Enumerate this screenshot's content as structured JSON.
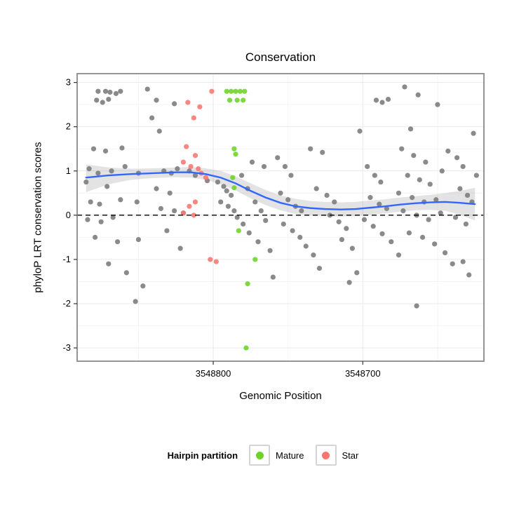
{
  "title": "Conservation",
  "axes": {
    "x_label": "Genomic Position",
    "y_label": "phyloP LRT conservation scores",
    "xlim_view": [
      3548891,
      3548619
    ],
    "ylim_view": [
      -3.3,
      3.2
    ],
    "x_ticks": [
      {
        "value": 3548800,
        "label": "3548800"
      },
      {
        "value": 3548700,
        "label": "3548700"
      }
    ],
    "y_ticks": [
      {
        "value": 3,
        "label": "3"
      },
      {
        "value": 2,
        "label": "2"
      },
      {
        "value": 1,
        "label": "1"
      },
      {
        "value": 0,
        "label": "0"
      },
      {
        "value": -1,
        "label": "-1"
      },
      {
        "value": -2,
        "label": "-2"
      },
      {
        "value": -3,
        "label": "-3"
      }
    ],
    "x_minor": [
      3548850,
      3548750,
      3548650
    ],
    "y_minor": [
      -2.5,
      -1.5,
      -0.5,
      0.5,
      1.5,
      2.5
    ]
  },
  "colors": {
    "point_other": "#7a7a7a",
    "point_mature": "#6cd427",
    "point_star": "#f8766d",
    "smooth_line": "#3366ff",
    "ribbon": "#8f8f8f",
    "grid_major": "#e9e9e9",
    "grid_minor": "#f4f4f4",
    "panel_border": "#8a8a8a",
    "hline": "#000000"
  },
  "chart_data": {
    "type": "scatter",
    "title": "Conservation",
    "xlabel": "Genomic Position",
    "ylabel": "phyloP LRT conservation scores",
    "x_reversed": true,
    "xlim": [
      3548891,
      3548619
    ],
    "ylim": [
      -3,
      3
    ],
    "grid": true,
    "legend_position": "bottom",
    "hline": {
      "y": 0,
      "style": "dashed"
    },
    "series": [
      {
        "name": "Other",
        "color": "#7a7a7a",
        "points": [
          [
            3548877,
            2.8
          ],
          [
            3548872,
            2.8
          ],
          [
            3548869,
            2.78
          ],
          [
            3548865,
            2.75
          ],
          [
            3548862,
            2.8
          ],
          [
            3548878,
            2.6
          ],
          [
            3548874,
            2.55
          ],
          [
            3548870,
            2.62
          ],
          [
            3548844,
            2.85
          ],
          [
            3548838,
            2.6
          ],
          [
            3548826,
            2.52
          ],
          [
            3548880,
            1.5
          ],
          [
            3548872,
            1.45
          ],
          [
            3548861,
            1.52
          ],
          [
            3548883,
            1.05
          ],
          [
            3548877,
            0.95
          ],
          [
            3548868,
            1.0
          ],
          [
            3548859,
            1.1
          ],
          [
            3548850,
            0.95
          ],
          [
            3548885,
            0.75
          ],
          [
            3548871,
            0.65
          ],
          [
            3548882,
            0.3
          ],
          [
            3548876,
            0.25
          ],
          [
            3548862,
            0.35
          ],
          [
            3548851,
            0.3
          ],
          [
            3548884,
            -0.1
          ],
          [
            3548875,
            -0.15
          ],
          [
            3548867,
            -0.05
          ],
          [
            3548879,
            -0.5
          ],
          [
            3548864,
            -0.6
          ],
          [
            3548850,
            -0.55
          ],
          [
            3548870,
            -1.1
          ],
          [
            3548858,
            -1.3
          ],
          [
            3548847,
            -1.6
          ],
          [
            3548852,
            -1.95
          ],
          [
            3548841,
            2.2
          ],
          [
            3548836,
            1.9
          ],
          [
            3548833,
            1.0
          ],
          [
            3548828,
            0.95
          ],
          [
            3548824,
            1.05
          ],
          [
            3548838,
            0.6
          ],
          [
            3548829,
            0.5
          ],
          [
            3548835,
            0.15
          ],
          [
            3548826,
            0.1
          ],
          [
            3548820,
            0.05
          ],
          [
            3548831,
            -0.35
          ],
          [
            3548822,
            -0.75
          ],
          [
            3548816,
            1.0
          ],
          [
            3548812,
            0.9
          ],
          [
            3548804,
            0.78
          ],
          [
            3548797,
            0.75
          ],
          [
            3548793,
            0.65
          ],
          [
            3548791,
            0.55
          ],
          [
            3548788,
            0.45
          ],
          [
            3548795,
            0.3
          ],
          [
            3548790,
            0.2
          ],
          [
            3548786,
            0.1
          ],
          [
            3548784,
            -0.05
          ],
          [
            3548780,
            -0.2
          ],
          [
            3548776,
            -0.4
          ],
          [
            3548781,
            0.9
          ],
          [
            3548777,
            0.6
          ],
          [
            3548772,
            0.3
          ],
          [
            3548768,
            0.1
          ],
          [
            3548765,
            -0.12
          ],
          [
            3548770,
            -0.6
          ],
          [
            3548762,
            -0.8
          ],
          [
            3548774,
            1.2
          ],
          [
            3548766,
            1.1
          ],
          [
            3548760,
            -1.4
          ],
          [
            3548757,
            1.3
          ],
          [
            3548752,
            1.1
          ],
          [
            3548748,
            0.9
          ],
          [
            3548755,
            0.5
          ],
          [
            3548750,
            0.35
          ],
          [
            3548745,
            0.2
          ],
          [
            3548741,
            0.1
          ],
          [
            3548753,
            -0.2
          ],
          [
            3548747,
            -0.35
          ],
          [
            3548742,
            -0.5
          ],
          [
            3548738,
            -0.7
          ],
          [
            3548733,
            -0.9
          ],
          [
            3548729,
            -1.2
          ],
          [
            3548735,
            1.5
          ],
          [
            3548727,
            1.42
          ],
          [
            3548731,
            0.6
          ],
          [
            3548724,
            0.45
          ],
          [
            3548719,
            0.3
          ],
          [
            3548722,
            0.0
          ],
          [
            3548716,
            -0.15
          ],
          [
            3548711,
            -0.3
          ],
          [
            3548714,
            -0.55
          ],
          [
            3548707,
            -0.75
          ],
          [
            3548704,
            -1.3
          ],
          [
            3548709,
            -1.52
          ],
          [
            3548702,
            1.9
          ],
          [
            3548691,
            2.6
          ],
          [
            3548687,
            2.55
          ],
          [
            3548683,
            2.62
          ],
          [
            3548697,
            1.1
          ],
          [
            3548692,
            0.9
          ],
          [
            3548688,
            0.75
          ],
          [
            3548695,
            0.4
          ],
          [
            3548689,
            0.25
          ],
          [
            3548684,
            0.15
          ],
          [
            3548699,
            -0.1
          ],
          [
            3548693,
            -0.25
          ],
          [
            3548687,
            -0.42
          ],
          [
            3548681,
            -0.6
          ],
          [
            3548676,
            -0.9
          ],
          [
            3548672,
            2.9
          ],
          [
            3548663,
            2.72
          ],
          [
            3548668,
            1.95
          ],
          [
            3548674,
            1.5
          ],
          [
            3548666,
            1.35
          ],
          [
            3548658,
            1.2
          ],
          [
            3548670,
            0.9
          ],
          [
            3548662,
            0.8
          ],
          [
            3548655,
            0.7
          ],
          [
            3548676,
            0.5
          ],
          [
            3548667,
            0.4
          ],
          [
            3548659,
            0.3
          ],
          [
            3548651,
            0.35
          ],
          [
            3548673,
            0.1
          ],
          [
            3548664,
            0.0
          ],
          [
            3548656,
            -0.1
          ],
          [
            3548648,
            0.05
          ],
          [
            3548669,
            -0.4
          ],
          [
            3548660,
            -0.5
          ],
          [
            3548652,
            -0.65
          ],
          [
            3548645,
            -0.85
          ],
          [
            3548640,
            -1.1
          ],
          [
            3548664,
            -2.05
          ],
          [
            3548643,
            1.45
          ],
          [
            3548637,
            1.3
          ],
          [
            3548633,
            1.1
          ],
          [
            3548635,
            0.6
          ],
          [
            3548630,
            0.45
          ],
          [
            3548627,
            0.3
          ],
          [
            3548638,
            -0.05
          ],
          [
            3548631,
            -0.2
          ],
          [
            3548629,
            -1.35
          ],
          [
            3548626,
            1.85
          ],
          [
            3548650,
            2.5
          ],
          [
            3548647,
            1.0
          ],
          [
            3548624,
            0.9
          ],
          [
            3548633,
            -1.05
          ]
        ]
      },
      {
        "name": "Star",
        "color": "#f8766d",
        "points": [
          [
            3548801,
            2.8
          ],
          [
            3548817,
            2.55
          ],
          [
            3548809,
            2.45
          ],
          [
            3548813,
            2.2
          ],
          [
            3548818,
            1.55
          ],
          [
            3548812,
            1.35
          ],
          [
            3548820,
            1.2
          ],
          [
            3548815,
            1.1
          ],
          [
            3548810,
            1.05
          ],
          [
            3548808,
            0.95
          ],
          [
            3548805,
            0.85
          ],
          [
            3548812,
            0.3
          ],
          [
            3548816,
            0.2
          ],
          [
            3548820,
            0.05
          ],
          [
            3548813,
            0.0
          ],
          [
            3548802,
            -1.0
          ],
          [
            3548798,
            -1.05
          ]
        ]
      },
      {
        "name": "Mature",
        "color": "#6cd427",
        "points": [
          [
            3548791,
            2.8
          ],
          [
            3548788,
            2.8
          ],
          [
            3548785,
            2.8
          ],
          [
            3548782,
            2.8
          ],
          [
            3548779,
            2.8
          ],
          [
            3548789,
            2.6
          ],
          [
            3548784,
            2.6
          ],
          [
            3548780,
            2.6
          ],
          [
            3548786,
            1.5
          ],
          [
            3548785,
            1.38
          ],
          [
            3548787,
            0.85
          ],
          [
            3548786,
            0.62
          ],
          [
            3548783,
            -0.35
          ],
          [
            3548772,
            -1.0
          ],
          [
            3548777,
            -1.55
          ],
          [
            3548778,
            -3.0
          ]
        ]
      }
    ],
    "smooth": {
      "name": "loess-fit",
      "color": "#3366ff",
      "points": [
        [
          3548885,
          0.85
        ],
        [
          3548870,
          0.9
        ],
        [
          3548855,
          0.93
        ],
        [
          3548840,
          0.95
        ],
        [
          3548825,
          0.97
        ],
        [
          3548815,
          0.97
        ],
        [
          3548805,
          0.93
        ],
        [
          3548795,
          0.85
        ],
        [
          3548785,
          0.72
        ],
        [
          3548775,
          0.55
        ],
        [
          3548765,
          0.4
        ],
        [
          3548755,
          0.28
        ],
        [
          3548745,
          0.2
        ],
        [
          3548735,
          0.16
        ],
        [
          3548725,
          0.14
        ],
        [
          3548715,
          0.13
        ],
        [
          3548705,
          0.14
        ],
        [
          3548695,
          0.17
        ],
        [
          3548685,
          0.2
        ],
        [
          3548675,
          0.24
        ],
        [
          3548665,
          0.27
        ],
        [
          3548655,
          0.29
        ],
        [
          3548645,
          0.3
        ],
        [
          3548635,
          0.28
        ],
        [
          3548625,
          0.25
        ]
      ],
      "ribbon": [
        [
          3548885,
          1.15,
          0.52
        ],
        [
          3548870,
          1.08,
          0.7
        ],
        [
          3548855,
          1.05,
          0.8
        ],
        [
          3548840,
          1.06,
          0.84
        ],
        [
          3548825,
          1.08,
          0.86
        ],
        [
          3548815,
          1.09,
          0.85
        ],
        [
          3548805,
          1.06,
          0.8
        ],
        [
          3548795,
          1.0,
          0.7
        ],
        [
          3548785,
          0.88,
          0.56
        ],
        [
          3548775,
          0.72,
          0.38
        ],
        [
          3548765,
          0.57,
          0.23
        ],
        [
          3548755,
          0.45,
          0.11
        ],
        [
          3548745,
          0.37,
          0.03
        ],
        [
          3548735,
          0.32,
          0.0
        ],
        [
          3548725,
          0.3,
          -0.02
        ],
        [
          3548715,
          0.29,
          -0.03
        ],
        [
          3548705,
          0.3,
          -0.02
        ],
        [
          3548695,
          0.33,
          0.01
        ],
        [
          3548685,
          0.36,
          0.04
        ],
        [
          3548675,
          0.4,
          0.08
        ],
        [
          3548665,
          0.43,
          0.11
        ],
        [
          3548655,
          0.46,
          0.12
        ],
        [
          3548645,
          0.5,
          0.1
        ],
        [
          3548635,
          0.55,
          0.01
        ],
        [
          3548625,
          0.62,
          -0.12
        ]
      ]
    }
  },
  "legend": {
    "title": "Hairpin partition",
    "items": [
      {
        "label": "Mature",
        "color": "#6cd427"
      },
      {
        "label": "Star",
        "color": "#f8766d"
      }
    ]
  }
}
